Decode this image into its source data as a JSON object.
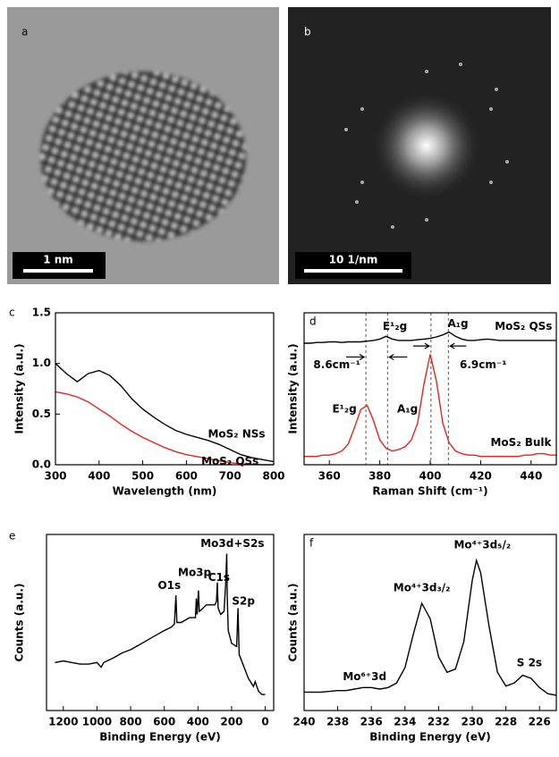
{
  "images": [
    {
      "label": "a",
      "scale_bar": "1 nm"
    },
    {
      "label": "b",
      "scale_bar": "10 1/nm"
    }
  ],
  "chart_data": [
    {
      "type": "line",
      "label": "c",
      "xlabel": "Wavelength (nm)",
      "ylabel": "Intensity (a.u.)",
      "x": [
        300,
        325,
        350,
        375,
        400,
        425,
        450,
        475,
        500,
        525,
        550,
        575,
        600,
        625,
        650,
        675,
        700,
        725,
        750,
        775,
        800
      ],
      "series": [
        {
          "color": "#000000",
          "values": [
            1.0,
            0.9,
            0.82,
            0.9,
            0.93,
            0.88,
            0.78,
            0.65,
            0.55,
            0.47,
            0.4,
            0.34,
            0.3,
            0.27,
            0.24,
            0.2,
            0.15,
            0.1,
            0.07,
            0.05,
            0.03
          ]
        },
        {
          "color": "#e8231e",
          "values": [
            0.72,
            0.7,
            0.67,
            0.62,
            0.55,
            0.48,
            0.4,
            0.33,
            0.27,
            0.22,
            0.17,
            0.13,
            0.1,
            0.08,
            0.06,
            0.04,
            0.02,
            0.01,
            0.005,
            0,
            0
          ]
        }
      ],
      "xlim": [
        300,
        800
      ],
      "xticks": [
        300,
        400,
        500,
        600,
        700,
        800
      ],
      "ylim": [
        0,
        1.5
      ],
      "yticks": [
        {
          "value": 0,
          "label": "0.0"
        },
        {
          "value": 0.5,
          "label": "0.5"
        },
        {
          "value": 1,
          "label": "1.0"
        },
        {
          "value": 1.5,
          "label": "1.5"
        }
      ],
      "annotations": [
        {
          "text": "MoS₂ NSs",
          "x": 715,
          "y": 0.3
        },
        {
          "text": "MoS₂ QSs",
          "x": 700,
          "y": 0.03
        }
      ]
    },
    {
      "type": "line",
      "label": "d",
      "xlabel": "Raman Shift (cm⁻¹)",
      "ylabel": "Intensity (a.u.)",
      "x": [
        350,
        352.5,
        355,
        357.5,
        360,
        362.5,
        365,
        367.5,
        370,
        372.5,
        375,
        377.5,
        380,
        382.5,
        385,
        387.5,
        390,
        392.5,
        395,
        397.5,
        400,
        402.5,
        405,
        407.5,
        410,
        412.5,
        415,
        417.5,
        420,
        422.5,
        425,
        427.5,
        430,
        432.5,
        435,
        437.5,
        440,
        442.5,
        445,
        447.5,
        450
      ],
      "series": [
        {
          "color": "#000000",
          "values": [
            0.88,
            0.88,
            0.885,
            0.885,
            0.89,
            0.89,
            0.885,
            0.89,
            0.89,
            0.89,
            0.895,
            0.9,
            0.91,
            0.93,
            0.91,
            0.9,
            0.9,
            0.9,
            0.905,
            0.91,
            0.915,
            0.925,
            0.94,
            0.96,
            0.93,
            0.91,
            0.9,
            0.9,
            0.905,
            0.91,
            0.905,
            0.9,
            0.9,
            0.9,
            0.9,
            0.9,
            0.9,
            0.9,
            0.9,
            0.9,
            0.9
          ]
        },
        {
          "color": "#e8231e",
          "values": [
            0.06,
            0.06,
            0.06,
            0.07,
            0.07,
            0.08,
            0.1,
            0.15,
            0.27,
            0.4,
            0.43,
            0.32,
            0.18,
            0.12,
            0.1,
            0.11,
            0.13,
            0.18,
            0.3,
            0.58,
            0.8,
            0.6,
            0.3,
            0.16,
            0.1,
            0.08,
            0.07,
            0.07,
            0.06,
            0.06,
            0.06,
            0.06,
            0.06,
            0.06,
            0.06,
            0.07,
            0.07,
            0.08,
            0.08,
            0.07,
            0.07
          ]
        }
      ],
      "xlim": [
        350,
        450
      ],
      "xticks": [
        360,
        380,
        400,
        420,
        440
      ],
      "ylim": [
        0,
        1.1
      ],
      "ref_lines": [
        374.5,
        383.1,
        400.3,
        407.2
      ],
      "annotations": [
        {
          "text": "MoS₂ QSs",
          "x": 437,
          "y": 1.0
        },
        {
          "text": "MoS₂ Bulk",
          "x": 436,
          "y": 0.16
        },
        {
          "text": "E¹₂g",
          "x": 386,
          "y": 1.0
        },
        {
          "text": "A₁g",
          "x": 411,
          "y": 1.02
        },
        {
          "text": "8.6cm⁻¹",
          "x": 363,
          "y": 0.72
        },
        {
          "text": "6.9cm⁻¹",
          "x": 421,
          "y": 0.72
        },
        {
          "text": "E¹₂g",
          "x": 366,
          "y": 0.4
        },
        {
          "text": "A₁g",
          "x": 391,
          "y": 0.4
        }
      ]
    },
    {
      "type": "line",
      "label": "e",
      "xlabel": "Binding Energy (eV)",
      "ylabel": "Counts (a.u.)",
      "x": [
        1250,
        1200,
        1150,
        1100,
        1050,
        1000,
        975,
        960,
        900,
        850,
        800,
        750,
        700,
        650,
        600,
        560,
        540,
        531,
        525,
        500,
        450,
        415,
        410,
        405,
        397,
        392,
        380,
        350,
        300,
        290,
        285,
        280,
        265,
        245,
        235,
        229,
        226,
        220,
        200,
        170,
        162,
        155,
        100,
        70,
        60,
        50,
        40,
        20,
        0
      ],
      "series": [
        {
          "color": "#000000",
          "values": [
            0.3,
            0.31,
            0.3,
            0.29,
            0.29,
            0.3,
            0.27,
            0.3,
            0.33,
            0.36,
            0.38,
            0.41,
            0.44,
            0.47,
            0.5,
            0.52,
            0.54,
            0.72,
            0.55,
            0.55,
            0.58,
            0.58,
            0.7,
            0.6,
            0.75,
            0.62,
            0.63,
            0.66,
            0.66,
            0.68,
            0.8,
            0.64,
            0.6,
            0.62,
            0.8,
            0.98,
            0.7,
            0.5,
            0.42,
            0.4,
            0.64,
            0.35,
            0.2,
            0.15,
            0.18,
            0.15,
            0.12,
            0.1,
            0.1
          ]
        }
      ],
      "xlim": [
        1300,
        -50
      ],
      "xticks": [
        1200,
        1000,
        800,
        600,
        400,
        200,
        0
      ],
      "ylim": [
        0,
        1.1
      ],
      "annotations": [
        {
          "text": "O1s",
          "x": 570,
          "y": 0.78
        },
        {
          "text": "Mo3p",
          "x": 420,
          "y": 0.86
        },
        {
          "text": "C1s",
          "x": 275,
          "y": 0.83
        },
        {
          "text": "Mo3d+S2s",
          "x": 195,
          "y": 1.04
        },
        {
          "text": "S2p",
          "x": 130,
          "y": 0.68
        }
      ]
    },
    {
      "type": "line",
      "label": "f",
      "xlabel": "Binding Energy (eV)",
      "ylabel": "Counts (a.u.)",
      "x": [
        240,
        239.5,
        239,
        238.5,
        238,
        237.5,
        237,
        236.5,
        236,
        235.5,
        235,
        234.5,
        234,
        233.5,
        233,
        232.5,
        232,
        231.5,
        231,
        230.5,
        230,
        229.75,
        229.5,
        229,
        228.5,
        228,
        227.5,
        227,
        226.5,
        226,
        225.5,
        225
      ],
      "series": [
        {
          "color": "#000000",
          "values": [
            0.12,
            0.12,
            0.12,
            0.125,
            0.13,
            0.13,
            0.14,
            0.15,
            0.15,
            0.14,
            0.15,
            0.18,
            0.28,
            0.5,
            0.7,
            0.6,
            0.35,
            0.25,
            0.27,
            0.45,
            0.85,
            0.98,
            0.9,
            0.55,
            0.25,
            0.16,
            0.18,
            0.23,
            0.21,
            0.15,
            0.11,
            0.1
          ]
        }
      ],
      "xlim": [
        240,
        225
      ],
      "xticks": [
        240,
        238,
        236,
        234,
        232,
        230,
        228,
        226
      ],
      "ylim": [
        0,
        1.15
      ],
      "annotations": [
        {
          "text": "Mo⁶⁺3d",
          "x": 236.4,
          "y": 0.22
        },
        {
          "text": "Mo⁴⁺3d₃/₂",
          "x": 233,
          "y": 0.8
        },
        {
          "text": "Mo⁴⁺3d₅/₂",
          "x": 229.4,
          "y": 1.08
        },
        {
          "text": "S 2s",
          "x": 226.6,
          "y": 0.31
        }
      ]
    }
  ]
}
